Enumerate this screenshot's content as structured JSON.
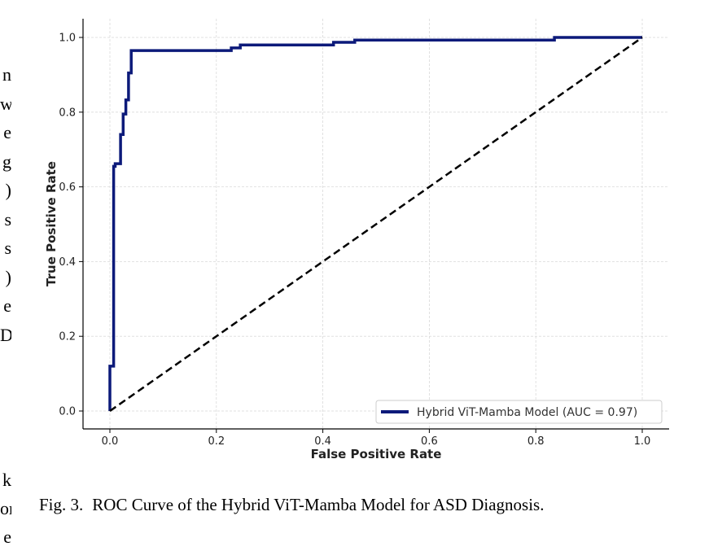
{
  "left_margin_text": {
    "lines_top": [
      "n",
      "w",
      "e",
      "g",
      ")",
      "s",
      "s",
      ")",
      "e",
      "D"
    ],
    "lines_bottom": [
      "k",
      "or",
      "e"
    ]
  },
  "caption": {
    "label": "Fig. 3.",
    "text": "ROC Curve of the Hybrid ViT-Mamba Model for ASD Diagnosis."
  },
  "colors": {
    "roc_line": "#0c1a7a",
    "diagonal": "#000000",
    "grid": "#d9d9d9"
  },
  "chart_data": {
    "type": "line",
    "title": "",
    "xlabel": "False Positive Rate",
    "ylabel": "True Positive Rate",
    "xlim": [
      0.0,
      1.0
    ],
    "ylim": [
      0.0,
      1.0
    ],
    "xticks": [
      "0.0",
      "0.2",
      "0.4",
      "0.6",
      "0.8",
      "1.0"
    ],
    "yticks": [
      "0.0",
      "0.2",
      "0.4",
      "0.6",
      "0.8",
      "1.0"
    ],
    "grid": true,
    "legend_position": "bottom-right",
    "series": [
      {
        "name": "Hybrid ViT-Mamba Model (AUC = 0.97)",
        "style": "solid",
        "x": [
          0.0,
          0.0,
          0.007,
          0.007,
          0.01,
          0.01,
          0.02,
          0.02,
          0.025,
          0.025,
          0.03,
          0.03,
          0.035,
          0.035,
          0.04,
          0.04,
          0.047,
          0.047,
          0.228,
          0.228,
          0.245,
          0.245,
          0.42,
          0.42,
          0.46,
          0.46,
          0.835,
          0.835,
          1.0
        ],
        "y": [
          0.0,
          0.12,
          0.12,
          0.655,
          0.655,
          0.662,
          0.662,
          0.74,
          0.74,
          0.795,
          0.795,
          0.833,
          0.833,
          0.905,
          0.905,
          0.965,
          0.965,
          0.965,
          0.965,
          0.972,
          0.972,
          0.98,
          0.98,
          0.987,
          0.987,
          0.993,
          0.993,
          1.0,
          1.0
        ]
      },
      {
        "name": "",
        "style": "dashed",
        "x": [
          0.0,
          1.0
        ],
        "y": [
          0.0,
          1.0
        ]
      }
    ]
  }
}
